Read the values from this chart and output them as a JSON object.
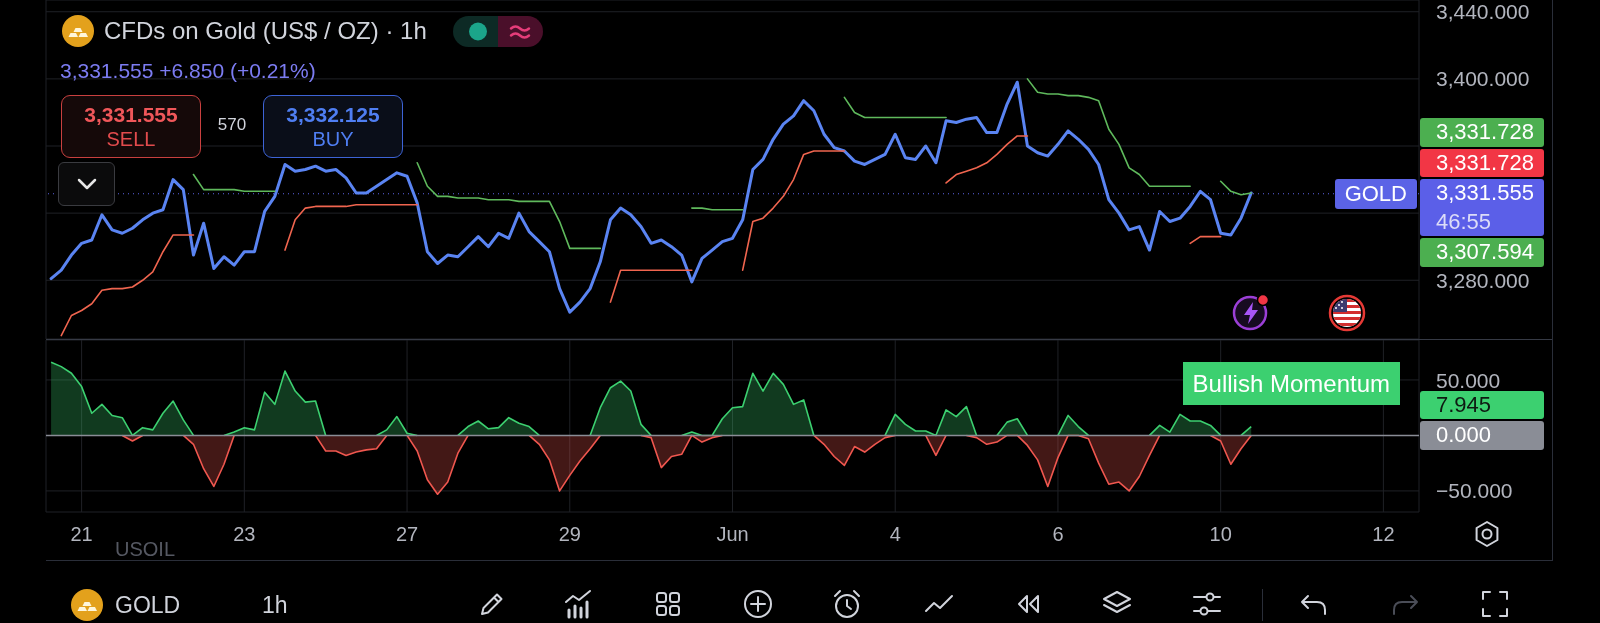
{
  "chart_data": [
    {
      "type": "line",
      "title": "CFDs on Gold (US$ / OZ) · 1h",
      "subtitle": "3,331.555 +6.850 (+0.21%)",
      "categories": [
        null,
        null,
        null,
        null,
        null,
        null,
        null,
        null,
        null,
        null,
        null,
        null,
        null,
        null,
        null,
        null,
        null,
        null,
        null,
        null,
        null,
        null,
        null,
        null,
        null,
        null,
        null,
        null,
        null,
        null,
        null,
        null,
        null,
        null,
        null,
        null,
        null,
        null,
        null,
        null,
        null,
        null,
        null,
        null,
        null,
        null,
        null,
        null,
        null,
        null,
        null,
        null,
        null,
        null,
        null,
        null,
        null,
        null,
        null,
        null,
        null,
        null,
        null,
        null,
        null,
        null,
        null,
        null,
        null,
        null,
        null,
        null,
        null,
        null,
        null,
        null,
        null,
        null,
        null,
        null,
        null,
        null,
        null,
        null,
        null,
        null,
        null,
        null,
        null,
        null,
        null,
        null,
        null,
        null,
        null,
        null,
        null,
        null,
        null,
        null,
        null,
        null,
        null,
        null,
        null,
        null,
        null,
        null,
        null,
        null,
        null,
        null,
        null,
        null,
        null,
        null,
        null,
        null,
        null,
        null,
        null,
        null,
        null,
        null,
        null,
        null,
        null,
        null,
        null,
        null,
        null,
        null,
        null,
        null,
        null
      ],
      "tick_labels": "y",
      "ylim": [
        3245,
        3447
      ],
      "yticks": [
        {
          "value": 3440,
          "label": "3,440.000"
        },
        {
          "value": 3400,
          "label": "3,400.000"
        },
        {
          "value": 3360,
          "label": null
        },
        {
          "value": 3320,
          "label": null
        },
        {
          "value": 3280,
          "label": "3,280.000"
        }
      ],
      "grid": true,
      "series": [
        {
          "color": "#5a84f2",
          "values": [
            3281,
            3286,
            3295,
            3302,
            3304,
            3319,
            3310,
            3308,
            3311,
            3316,
            3320,
            3322,
            3340,
            3334,
            3295,
            3314,
            3287,
            3294,
            3289,
            3297,
            3297,
            3321,
            3330,
            3349,
            3345,
            3346,
            3348,
            3345,
            3346,
            3341,
            3332,
            3332,
            3336,
            3340,
            3344,
            3342,
            3326,
            3297,
            3290,
            3295,
            3294,
            3300,
            3306,
            3300,
            3308,
            3305,
            3320,
            3309,
            3303,
            3297,
            3275,
            3261,
            3267,
            3275,
            3291,
            3316,
            3323,
            3319,
            3312,
            3302,
            3304,
            3300,
            3295,
            3279,
            3293,
            3298,
            3303,
            3305,
            3316,
            3346,
            3352,
            3364,
            3373,
            3378,
            3387,
            3381,
            3367,
            3359,
            3357,
            3351,
            3349,
            3352,
            3355,
            3367,
            3353,
            3352,
            3360,
            3350,
            3375,
            3374,
            3376,
            3377,
            3368,
            3368,
            3385,
            3398,
            3360,
            3356,
            3354,
            3361,
            3369,
            3364,
            3358,
            3349,
            3328,
            3320,
            3310,
            3312,
            3298,
            3321,
            3315,
            3317,
            3324,
            3333,
            3328,
            3308,
            3307,
            3317,
            3332,
            null,
            null,
            null,
            null,
            null,
            null,
            null,
            null,
            null,
            null,
            null,
            null,
            null,
            null,
            null,
            null
          ]
        },
        {
          "color": "#5fb95c",
          "values": [
            null,
            null,
            null,
            null,
            null,
            null,
            null,
            null,
            null,
            null,
            null,
            null,
            null,
            null,
            3343,
            3334,
            3334,
            3334,
            3334,
            3333,
            3333,
            3333,
            3333,
            null,
            null,
            null,
            null,
            null,
            null,
            null,
            null,
            null,
            null,
            null,
            null,
            null,
            3350,
            3336,
            3330,
            3330,
            3329,
            3329,
            3329,
            3328,
            3328,
            3328,
            3327,
            3327,
            3327,
            3327,
            3315,
            3299,
            3299,
            3299,
            3299,
            null,
            null,
            null,
            null,
            null,
            null,
            null,
            null,
            3323,
            3323,
            3322,
            3322,
            3322,
            3322,
            null,
            null,
            null,
            null,
            null,
            null,
            null,
            null,
            null,
            3389,
            3380,
            3377,
            3377,
            3377,
            3377,
            3377,
            3377,
            3377,
            3377,
            3377,
            null,
            null,
            null,
            null,
            null,
            null,
            null,
            3400,
            3392,
            3391,
            3391,
            3390,
            3390,
            3389,
            3387,
            3370,
            3361,
            3347,
            3343,
            3336,
            3336,
            3336,
            3336,
            3336,
            null,
            null,
            3339,
            3333,
            3331,
            3332,
            null,
            null,
            null,
            null,
            null,
            null,
            null,
            null,
            null,
            null,
            null,
            null,
            null,
            null,
            null,
            null
          ]
        },
        {
          "color": "#f0654f",
          "values": [
            null,
            3247,
            3259,
            3262,
            3266,
            3274,
            3275,
            3275,
            3276,
            3280,
            3285,
            3297,
            3307,
            3307,
            3307,
            null,
            null,
            null,
            null,
            null,
            null,
            null,
            null,
            3298,
            3316,
            3323,
            3324,
            3324,
            3324,
            3324,
            3325,
            3325,
            3325,
            3325,
            3325,
            3325,
            3325,
            null,
            null,
            null,
            null,
            null,
            null,
            null,
            null,
            null,
            null,
            null,
            null,
            null,
            null,
            null,
            null,
            null,
            null,
            3267,
            3286,
            3286,
            3286,
            3286,
            3286,
            3286,
            3286,
            3286,
            null,
            null,
            null,
            null,
            3286,
            3315,
            3317,
            3323,
            3330,
            3340,
            3355,
            3357,
            3357,
            3357,
            3357,
            null,
            null,
            null,
            null,
            null,
            null,
            null,
            null,
            null,
            3338,
            3343,
            3345,
            3347,
            3350,
            3355,
            3361,
            3366,
            3366,
            null,
            null,
            null,
            null,
            null,
            null,
            null,
            null,
            null,
            null,
            null,
            null,
            null,
            null,
            null,
            3302,
            3306,
            3306,
            3306,
            null,
            null,
            null,
            null,
            null,
            null,
            null,
            null,
            null,
            null,
            null,
            null,
            null,
            null,
            null,
            null,
            null,
            null,
            null
          ]
        }
      ],
      "ref_lines": [
        {
          "axis": "y",
          "value": 3331.555,
          "label": "GOLD",
          "color": "#5b63e6",
          "line_style": "dotted"
        }
      ],
      "annotations": [
        "3,331.555",
        "SELL",
        "570",
        "3,332.125",
        "BUY",
        "3,331.728",
        "3,331.728",
        "3,331.555",
        "46:55",
        "3,307.594"
      ]
    },
    {
      "type": "area",
      "categories": [
        null,
        null,
        null,
        "21",
        null,
        null,
        null,
        null,
        null,
        null,
        null,
        null,
        null,
        null,
        null,
        null,
        null,
        null,
        null,
        "23",
        null,
        null,
        null,
        null,
        null,
        null,
        null,
        null,
        null,
        null,
        null,
        null,
        null,
        null,
        null,
        "27",
        null,
        null,
        null,
        null,
        null,
        null,
        null,
        null,
        null,
        null,
        null,
        null,
        null,
        null,
        null,
        "29",
        null,
        null,
        null,
        null,
        null,
        null,
        null,
        null,
        null,
        null,
        null,
        null,
        null,
        null,
        null,
        "Jun",
        null,
        null,
        null,
        null,
        null,
        null,
        null,
        null,
        null,
        null,
        null,
        null,
        null,
        null,
        null,
        "4",
        null,
        null,
        null,
        null,
        null,
        null,
        null,
        null,
        null,
        null,
        null,
        null,
        null,
        null,
        null,
        "6",
        null,
        null,
        null,
        null,
        null,
        null,
        null,
        null,
        null,
        null,
        null,
        null,
        null,
        null,
        null,
        "10",
        null,
        null,
        null,
        null,
        null,
        null,
        null,
        null,
        null,
        null,
        null,
        null,
        null,
        null,
        null,
        "12",
        null,
        null,
        null
      ],
      "ylim": [
        -69,
        86
      ],
      "yticks": [
        {
          "value": 50,
          "label": "50.000"
        },
        {
          "value": -50,
          "label": "−50.000"
        }
      ],
      "grid": true,
      "series": [
        {
          "name": "Bullish Momentum",
          "color": "#3cd070",
          "values": [
            66,
            62,
            56,
            44,
            20,
            28,
            18,
            16,
            0,
            7,
            5,
            20,
            31,
            14,
            0,
            null,
            null,
            0,
            3,
            7,
            5,
            39,
            28,
            58,
            40,
            30,
            31,
            0,
            null,
            null,
            null,
            null,
            0,
            5,
            17,
            2,
            0,
            null,
            null,
            null,
            0,
            8,
            13,
            6,
            7,
            16,
            11,
            8,
            0,
            null,
            null,
            null,
            null,
            0,
            25,
            43,
            49,
            40,
            10,
            0,
            null,
            null,
            0,
            3,
            0,
            0,
            15,
            25,
            26,
            56,
            40,
            56,
            46,
            28,
            32,
            0,
            null,
            null,
            null,
            null,
            null,
            null,
            0,
            19,
            10,
            4,
            4,
            0,
            23,
            17,
            26,
            0,
            null,
            0,
            12,
            15,
            0,
            null,
            null,
            0,
            18,
            8,
            0,
            null,
            null,
            null,
            null,
            null,
            0,
            9,
            3,
            19,
            13,
            13,
            9,
            0,
            null,
            0,
            8,
            null,
            null,
            null,
            null,
            null,
            null,
            null,
            null,
            null,
            null,
            null,
            null,
            null,
            null,
            null,
            null
          ]
        },
        {
          "color": "#f0574f",
          "values": [
            null,
            null,
            null,
            null,
            null,
            null,
            null,
            0,
            -5,
            0,
            null,
            null,
            null,
            0,
            -8,
            -30,
            -46,
            -26,
            0,
            null,
            null,
            null,
            null,
            null,
            null,
            null,
            0,
            -14,
            -14,
            -18,
            -15,
            -13,
            -12,
            0,
            null,
            0,
            -14,
            -40,
            -53,
            -42,
            -16,
            0,
            null,
            null,
            null,
            null,
            null,
            0,
            -8,
            -22,
            -50,
            -36,
            -23,
            -12,
            0,
            null,
            null,
            null,
            0,
            -2,
            -29,
            -19,
            -17,
            0,
            -6,
            -2,
            0,
            null,
            null,
            null,
            null,
            null,
            null,
            null,
            null,
            0,
            -8,
            -19,
            -27,
            -10,
            -15,
            -8,
            -2,
            0,
            null,
            null,
            0,
            -18,
            0,
            null,
            0,
            -2,
            -8,
            -6,
            0,
            0,
            -9,
            -22,
            -46,
            -20,
            0,
            0,
            -3,
            -25,
            -44,
            -42,
            -50,
            -37,
            -18,
            0,
            null,
            null,
            null,
            null,
            0,
            -5,
            -26,
            -12,
            0,
            null,
            null,
            null,
            null,
            null,
            null,
            null,
            null,
            null,
            null,
            null,
            null,
            null,
            null,
            null,
            null
          ]
        }
      ],
      "ref_lines": [
        {
          "axis": "y",
          "value": 0,
          "label": "0.000",
          "color": "#8a8d96"
        }
      ],
      "annotations": [
        "USOIL",
        "GOLD",
        "1h",
        "7.945"
      ]
    }
  ]
}
